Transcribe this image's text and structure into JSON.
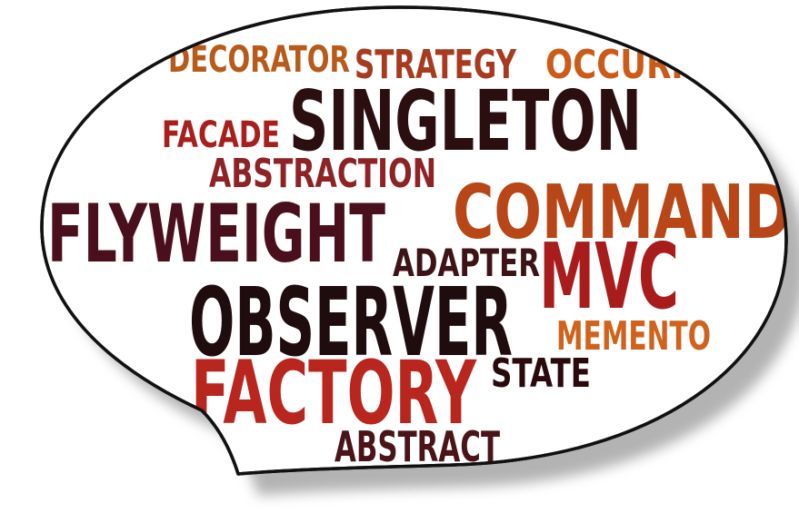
{
  "colors": {
    "bubble_fill": "#ffffff",
    "bubble_stroke": "#111111",
    "shadow": "#9a9a9a"
  },
  "words": [
    {
      "text": "DECORATOR",
      "color": "#b85a1a",
      "font": "DejaVu Sans Condensed"
    },
    {
      "text": "STRATEGY",
      "color": "#a83a1e",
      "font": "DejaVu Sans Condensed"
    },
    {
      "text": "OCCURRE",
      "color": "#cc5a18",
      "font": "DejaVu Sans Condensed"
    },
    {
      "text": "SINGLETON",
      "color": "#2a0e10",
      "font": "DejaVu Sans Condensed"
    },
    {
      "text": "FACADE",
      "color": "#a8201e",
      "font": "DejaVu Sans Condensed"
    },
    {
      "text": "ABSTRACTION",
      "color": "#8e2326",
      "font": "DejaVu Sans Condensed"
    },
    {
      "text": "COMMAND",
      "color": "#b84616",
      "font": "DejaVu Sans Condensed"
    },
    {
      "text": "FLYWEIGHT",
      "color": "#4a0f1c",
      "font": "DejaVu Sans Condensed"
    },
    {
      "text": "ADAPTER",
      "color": "#3c1418",
      "font": "DejaVu Sans Condensed"
    },
    {
      "text": "MVC",
      "color": "#a81c1c",
      "font": "DejaVu Sans Condensed"
    },
    {
      "text": "OBSERVER",
      "color": "#1e0c0e",
      "font": "DejaVu Sans Condensed"
    },
    {
      "text": "MEMENTO",
      "color": "#d0621c",
      "font": "DejaVu Sans Condensed"
    },
    {
      "text": "STATE",
      "color": "#2a0a0c",
      "font": "DejaVu Sans Condensed"
    },
    {
      "text": "FACTORY",
      "color": "#b8261e",
      "font": "DejaVu Sans Condensed"
    },
    {
      "text": "ABSTRACT",
      "color": "#4a1418",
      "font": "DejaVu Sans Condensed"
    }
  ]
}
